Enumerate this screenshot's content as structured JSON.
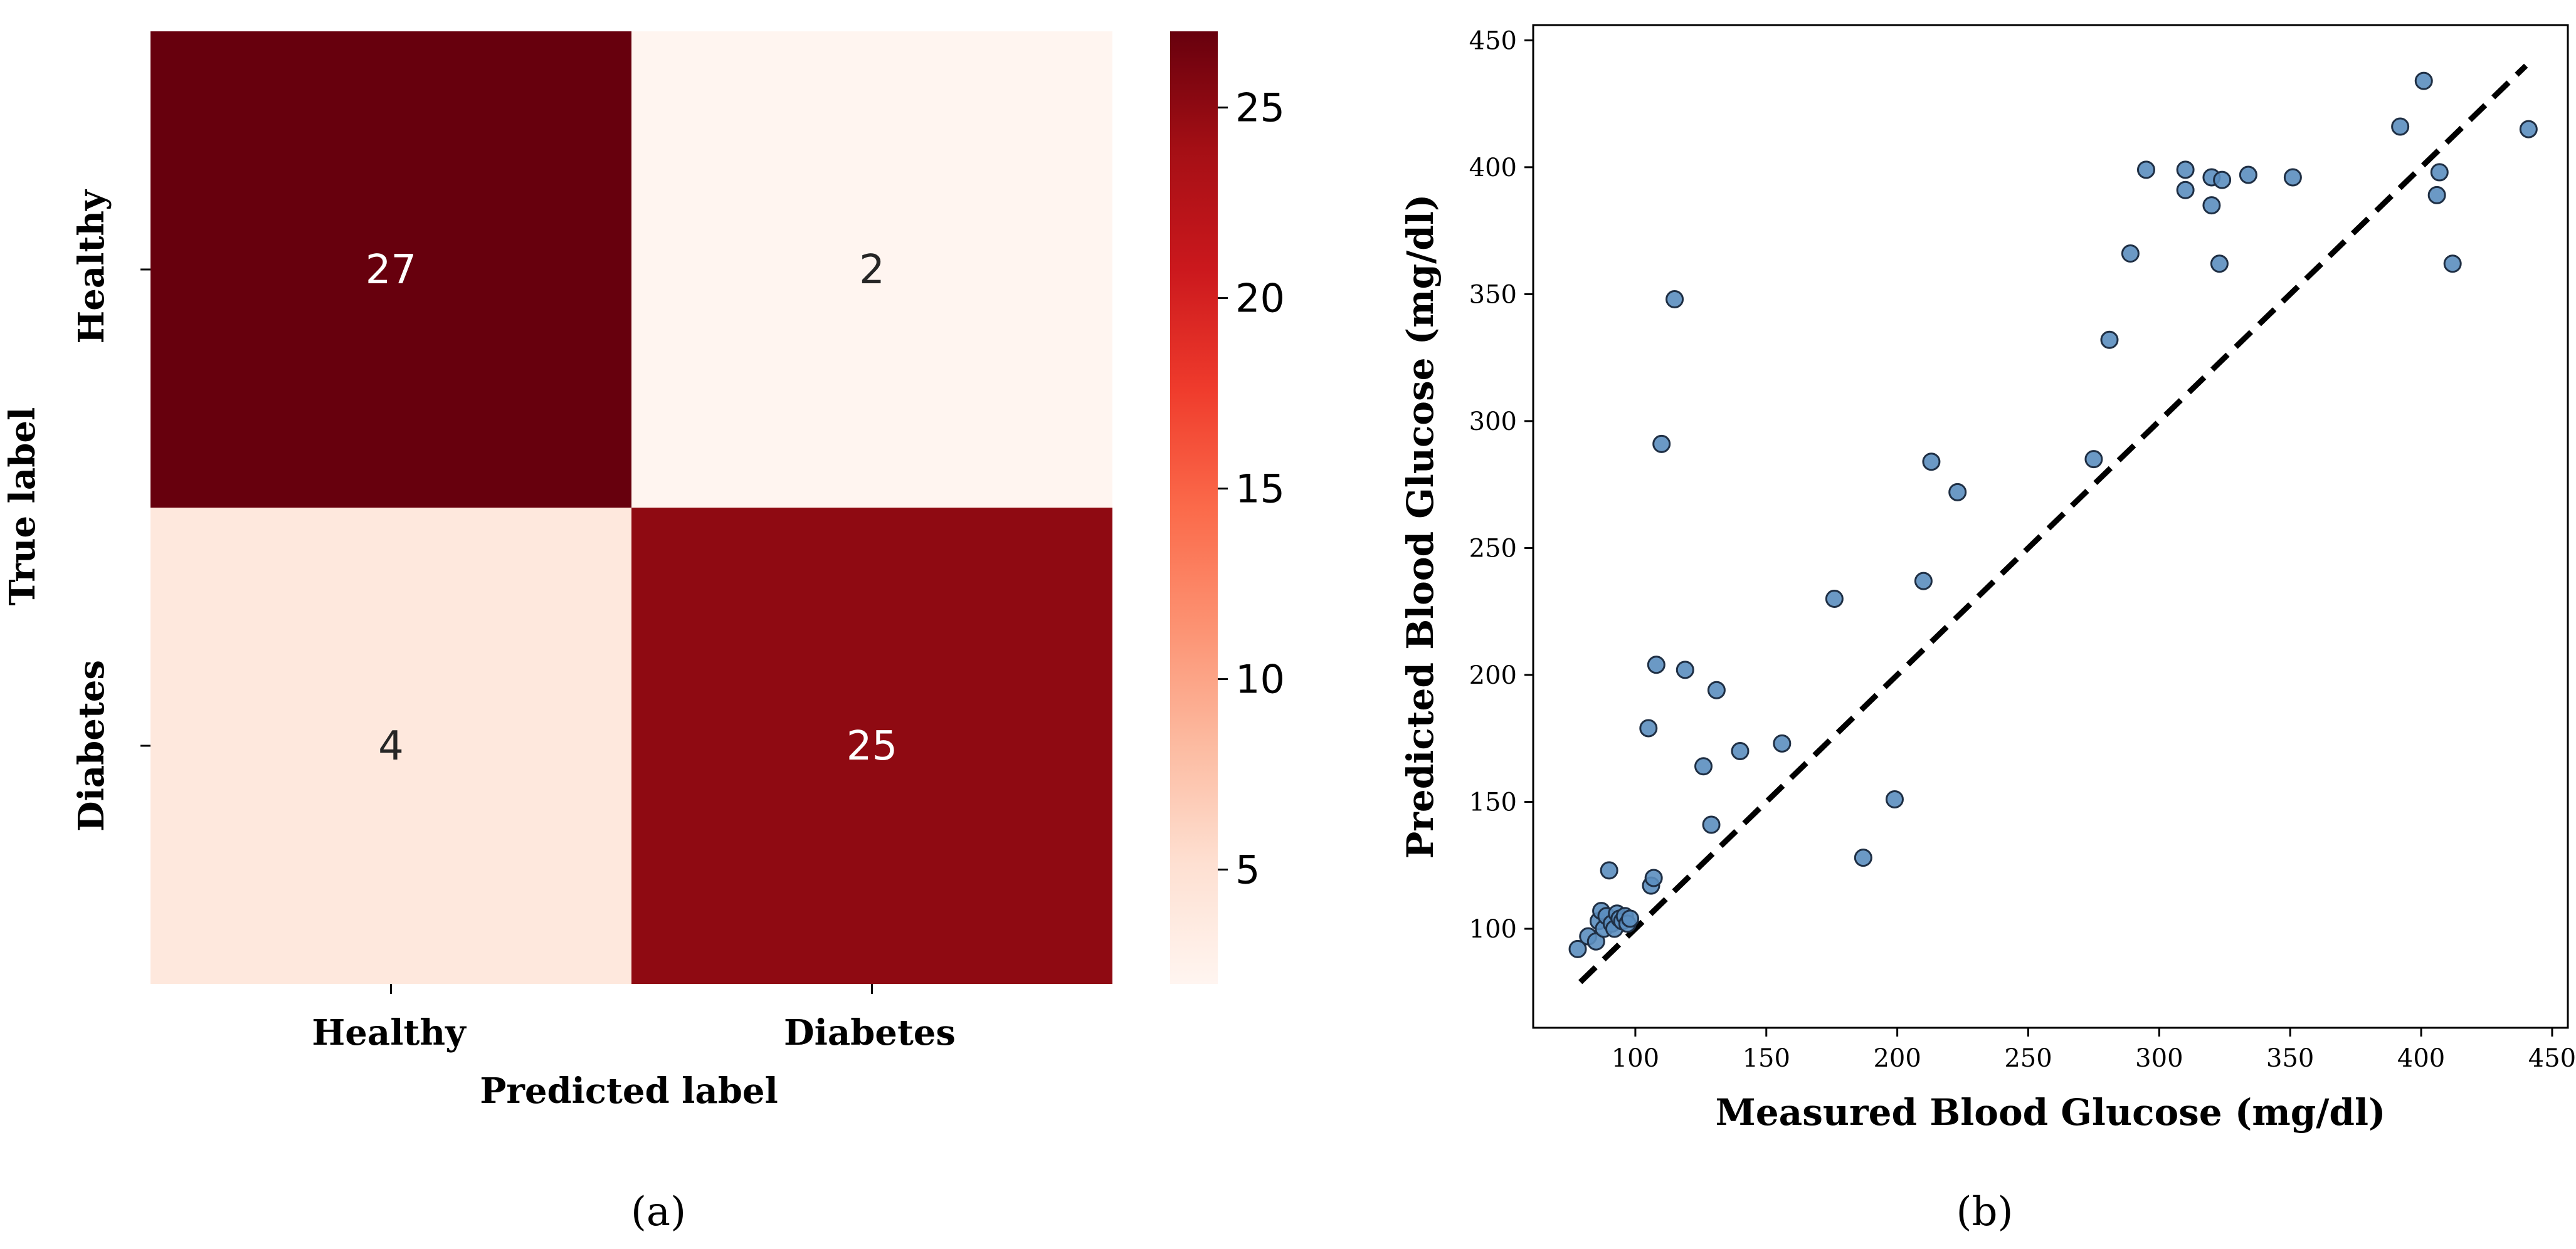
{
  "colors": {
    "cm_scale": [
      "#fff5f0",
      "#fee0d2",
      "#fcbba1",
      "#fc9272",
      "#fb6a4a",
      "#ef3b2c",
      "#cb181d",
      "#a50f15",
      "#67000d"
    ],
    "dark_text": "#262626",
    "light_text": "#ffffff",
    "point_fill": "#5b8ebf",
    "point_edge": "#1f2f44",
    "diag_line": "#000000"
  },
  "chart_data": [
    {
      "id": "a",
      "type": "heatmap",
      "subfigure_label": "(a)",
      "row_labels": [
        "Healthy",
        "Diabetes"
      ],
      "col_labels": [
        "Healthy",
        "Diabetes"
      ],
      "values": [
        [
          27,
          2
        ],
        [
          4,
          25
        ]
      ],
      "value_labels": [
        [
          "27",
          "2"
        ],
        [
          "4",
          "25"
        ]
      ],
      "xlabel": "Predicted label",
      "ylabel": "True label",
      "colorbar": {
        "min": 2,
        "max": 27,
        "ticks": [
          5,
          10,
          15,
          20,
          25
        ],
        "tick_labels": [
          "5",
          "10",
          "15",
          "20",
          "25"
        ]
      }
    },
    {
      "id": "b",
      "type": "scatter",
      "subfigure_label": "(b)",
      "xlabel": "Measured Blood Glucose (mg/dl)",
      "ylabel": "Predicted Blood Glucose (mg/dl)",
      "xlim": [
        61,
        456
      ],
      "ylim": [
        61,
        456
      ],
      "xticks": [
        100,
        150,
        200,
        250,
        300,
        350,
        400,
        450
      ],
      "xtick_labels": [
        "100",
        "150",
        "200",
        "250",
        "300",
        "350",
        "400",
        "450"
      ],
      "yticks": [
        100,
        150,
        200,
        250,
        300,
        350,
        400,
        450
      ],
      "ytick_labels": [
        "100",
        "150",
        "200",
        "250",
        "300",
        "350",
        "400",
        "450"
      ],
      "reference_line": {
        "style": "dashed",
        "from": [
          79,
          79
        ],
        "to": [
          440,
          440
        ]
      },
      "points": [
        {
          "x": 78,
          "y": 92
        },
        {
          "x": 82,
          "y": 97
        },
        {
          "x": 85,
          "y": 95
        },
        {
          "x": 86,
          "y": 103
        },
        {
          "x": 87,
          "y": 107
        },
        {
          "x": 88,
          "y": 100
        },
        {
          "x": 89,
          "y": 105
        },
        {
          "x": 90,
          "y": 123
        },
        {
          "x": 91,
          "y": 102
        },
        {
          "x": 92,
          "y": 100
        },
        {
          "x": 93,
          "y": 106
        },
        {
          "x": 94,
          "y": 104
        },
        {
          "x": 95,
          "y": 103
        },
        {
          "x": 96,
          "y": 105
        },
        {
          "x": 97,
          "y": 102
        },
        {
          "x": 98,
          "y": 104
        },
        {
          "x": 106,
          "y": 117
        },
        {
          "x": 107,
          "y": 120
        },
        {
          "x": 105,
          "y": 179
        },
        {
          "x": 108,
          "y": 204
        },
        {
          "x": 110,
          "y": 291
        },
        {
          "x": 115,
          "y": 348
        },
        {
          "x": 119,
          "y": 202
        },
        {
          "x": 126,
          "y": 164
        },
        {
          "x": 129,
          "y": 141
        },
        {
          "x": 131,
          "y": 194
        },
        {
          "x": 140,
          "y": 170
        },
        {
          "x": 156,
          "y": 173
        },
        {
          "x": 176,
          "y": 230
        },
        {
          "x": 187,
          "y": 128
        },
        {
          "x": 199,
          "y": 151
        },
        {
          "x": 210,
          "y": 237
        },
        {
          "x": 213,
          "y": 284
        },
        {
          "x": 223,
          "y": 272
        },
        {
          "x": 275,
          "y": 285
        },
        {
          "x": 281,
          "y": 332
        },
        {
          "x": 289,
          "y": 366
        },
        {
          "x": 295,
          "y": 399
        },
        {
          "x": 310,
          "y": 391
        },
        {
          "x": 310,
          "y": 399
        },
        {
          "x": 320,
          "y": 385
        },
        {
          "x": 320,
          "y": 396
        },
        {
          "x": 323,
          "y": 362
        },
        {
          "x": 324,
          "y": 395
        },
        {
          "x": 334,
          "y": 397
        },
        {
          "x": 351,
          "y": 396
        },
        {
          "x": 392,
          "y": 416
        },
        {
          "x": 401,
          "y": 434
        },
        {
          "x": 406,
          "y": 389
        },
        {
          "x": 407,
          "y": 398
        },
        {
          "x": 412,
          "y": 362
        },
        {
          "x": 441,
          "y": 415
        }
      ]
    }
  ]
}
